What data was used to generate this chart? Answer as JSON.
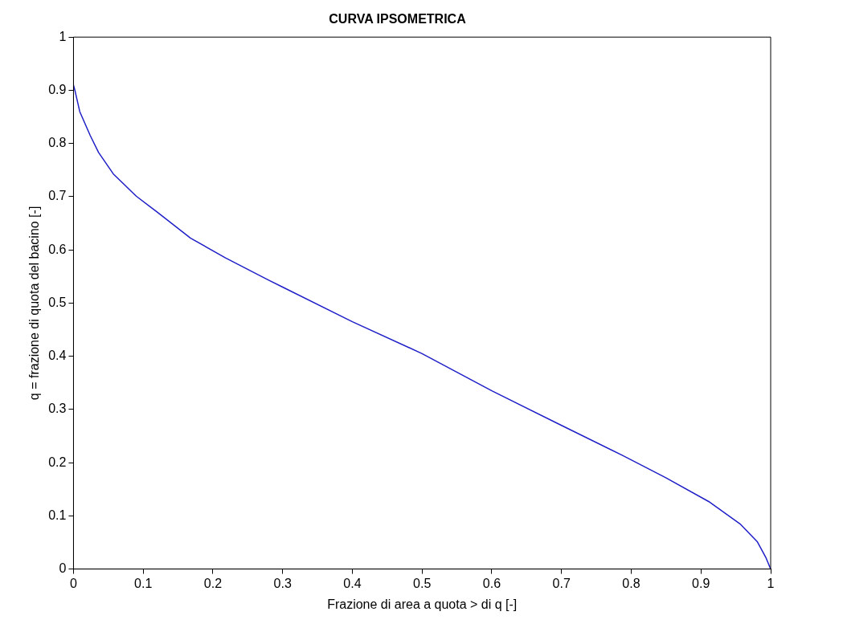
{
  "chart_data": {
    "type": "line",
    "title": "CURVA IPSOMETRICA",
    "xlabel": "Frazione di area a quota > di q [-]",
    "ylabel": "q = frazione di quota del bacino [-]",
    "x": [
      0,
      0.002,
      0.009,
      0.024,
      0.036,
      0.057,
      0.09,
      0.119,
      0.168,
      0.218,
      0.28,
      0.3,
      0.4,
      0.5,
      0.6,
      0.7,
      0.787,
      0.849,
      0.911,
      0.956,
      0.981,
      0.993,
      1
    ],
    "series": [
      {
        "color": "#1f1fc8",
        "values": [
          0.91,
          0.9,
          0.86,
          0.815,
          0.783,
          0.743,
          0.701,
          0.672,
          0.622,
          0.585,
          0.543,
          0.53,
          0.465,
          0.405,
          0.335,
          0.27,
          0.214,
          0.172,
          0.127,
          0.085,
          0.051,
          0.022,
          0
        ]
      }
    ],
    "xlim": [
      0,
      1
    ],
    "xticks": [
      0,
      0.1,
      0.2,
      0.3,
      0.4,
      0.5,
      0.6,
      0.7,
      0.8,
      0.9,
      1
    ],
    "ylim": [
      0,
      1
    ],
    "yticks": [
      0,
      0.1,
      0.2,
      0.3,
      0.4,
      0.5,
      0.6,
      0.7,
      0.8,
      0.9,
      1
    ],
    "grid": false,
    "legend": false,
    "marker": "none",
    "line_style": "solid"
  }
}
